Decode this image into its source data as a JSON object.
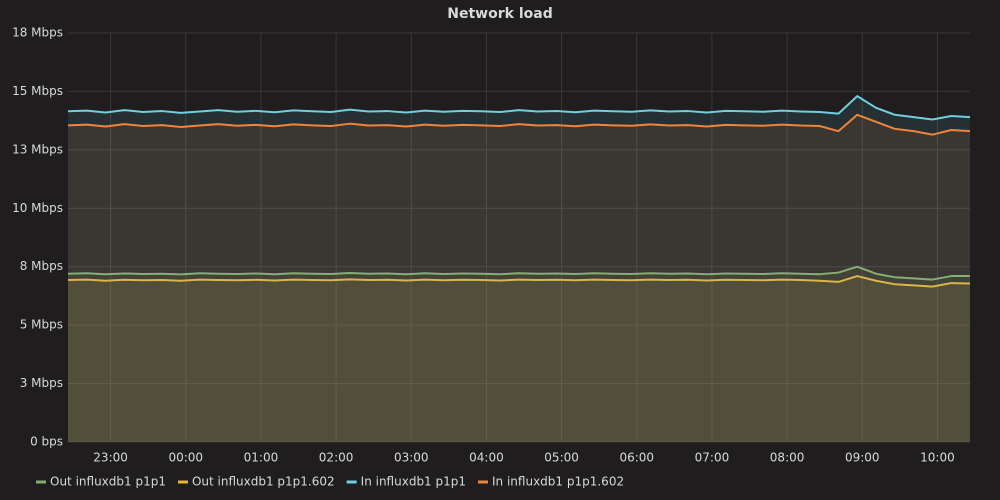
{
  "chart_data": {
    "type": "line",
    "title": "Network load",
    "x": [
      "22:26",
      "22:41",
      "22:56",
      "23:11",
      "23:26",
      "23:41",
      "23:56",
      "00:11",
      "00:26",
      "00:41",
      "00:56",
      "01:11",
      "01:26",
      "01:41",
      "01:56",
      "02:11",
      "02:26",
      "02:41",
      "02:56",
      "03:11",
      "03:26",
      "03:41",
      "03:56",
      "04:11",
      "04:26",
      "04:41",
      "04:56",
      "05:11",
      "05:26",
      "05:41",
      "05:56",
      "06:11",
      "06:26",
      "06:41",
      "06:56",
      "07:11",
      "07:26",
      "07:41",
      "07:56",
      "08:11",
      "08:26",
      "08:41",
      "08:56",
      "09:11",
      "09:26",
      "09:41",
      "09:56",
      "10:11",
      "10:26"
    ],
    "xlim": [
      "22:26",
      "10:26"
    ],
    "xticks": [
      "23:00",
      "00:00",
      "01:00",
      "02:00",
      "03:00",
      "04:00",
      "05:00",
      "06:00",
      "07:00",
      "08:00",
      "09:00",
      "10:00"
    ],
    "ylim": [
      0,
      17.5
    ],
    "yticks": [
      {
        "value": 0,
        "label": "0 bps"
      },
      {
        "value": 2.5,
        "label": "3 Mbps"
      },
      {
        "value": 5,
        "label": "5 Mbps"
      },
      {
        "value": 7.5,
        "label": "8 Mbps"
      },
      {
        "value": 10,
        "label": "10 Mbps"
      },
      {
        "value": 12.5,
        "label": "13 Mbps"
      },
      {
        "value": 15,
        "label": "15 Mbps"
      },
      {
        "value": 17.5,
        "label": "18 Mbps"
      }
    ],
    "grid": true,
    "legend": "bottom",
    "series": [
      {
        "name": "Out influxdb1 p1p1",
        "color": "#7eb26d",
        "values": [
          7.2,
          7.22,
          7.18,
          7.21,
          7.19,
          7.2,
          7.17,
          7.22,
          7.2,
          7.19,
          7.21,
          7.18,
          7.22,
          7.2,
          7.19,
          7.23,
          7.2,
          7.21,
          7.18,
          7.22,
          7.19,
          7.21,
          7.2,
          7.18,
          7.22,
          7.2,
          7.21,
          7.19,
          7.22,
          7.2,
          7.19,
          7.22,
          7.2,
          7.21,
          7.18,
          7.21,
          7.2,
          7.19,
          7.22,
          7.2,
          7.18,
          7.25,
          7.5,
          7.2,
          7.05,
          7.0,
          6.95,
          7.1,
          7.1
        ]
      },
      {
        "name": "Out influxdb1 p1p1.602",
        "color": "#eab839",
        "values": [
          6.93,
          6.95,
          6.9,
          6.94,
          6.92,
          6.93,
          6.9,
          6.95,
          6.93,
          6.92,
          6.94,
          6.91,
          6.95,
          6.93,
          6.92,
          6.96,
          6.93,
          6.94,
          6.91,
          6.95,
          6.92,
          6.94,
          6.93,
          6.91,
          6.95,
          6.93,
          6.94,
          6.92,
          6.95,
          6.93,
          6.92,
          6.95,
          6.93,
          6.94,
          6.91,
          6.94,
          6.93,
          6.92,
          6.95,
          6.93,
          6.9,
          6.85,
          7.1,
          6.9,
          6.75,
          6.7,
          6.65,
          6.8,
          6.78
        ]
      },
      {
        "name": "In influxdb1 p1p1",
        "color": "#6ed0e0",
        "values": [
          14.15,
          14.18,
          14.1,
          14.2,
          14.12,
          14.16,
          14.08,
          14.14,
          14.2,
          14.13,
          14.17,
          14.11,
          14.19,
          14.15,
          14.12,
          14.22,
          14.14,
          14.16,
          14.1,
          14.18,
          14.13,
          14.17,
          14.15,
          14.12,
          14.2,
          14.14,
          14.16,
          14.11,
          14.18,
          14.15,
          14.13,
          14.19,
          14.14,
          14.16,
          14.1,
          14.17,
          14.15,
          14.13,
          14.18,
          14.14,
          14.12,
          14.05,
          14.8,
          14.3,
          14.0,
          13.9,
          13.8,
          13.95,
          13.9
        ]
      },
      {
        "name": "In influxdb1 p1p1.602",
        "color": "#ef843c",
        "values": [
          13.55,
          13.58,
          13.5,
          13.6,
          13.52,
          13.56,
          13.48,
          13.54,
          13.6,
          13.53,
          13.57,
          13.51,
          13.59,
          13.55,
          13.52,
          13.62,
          13.54,
          13.56,
          13.5,
          13.58,
          13.53,
          13.57,
          13.55,
          13.52,
          13.6,
          13.54,
          13.56,
          13.51,
          13.58,
          13.55,
          13.53,
          13.59,
          13.54,
          13.56,
          13.5,
          13.57,
          13.55,
          13.53,
          13.58,
          13.54,
          13.52,
          13.3,
          14.0,
          13.7,
          13.4,
          13.3,
          13.15,
          13.35,
          13.3
        ]
      }
    ]
  }
}
